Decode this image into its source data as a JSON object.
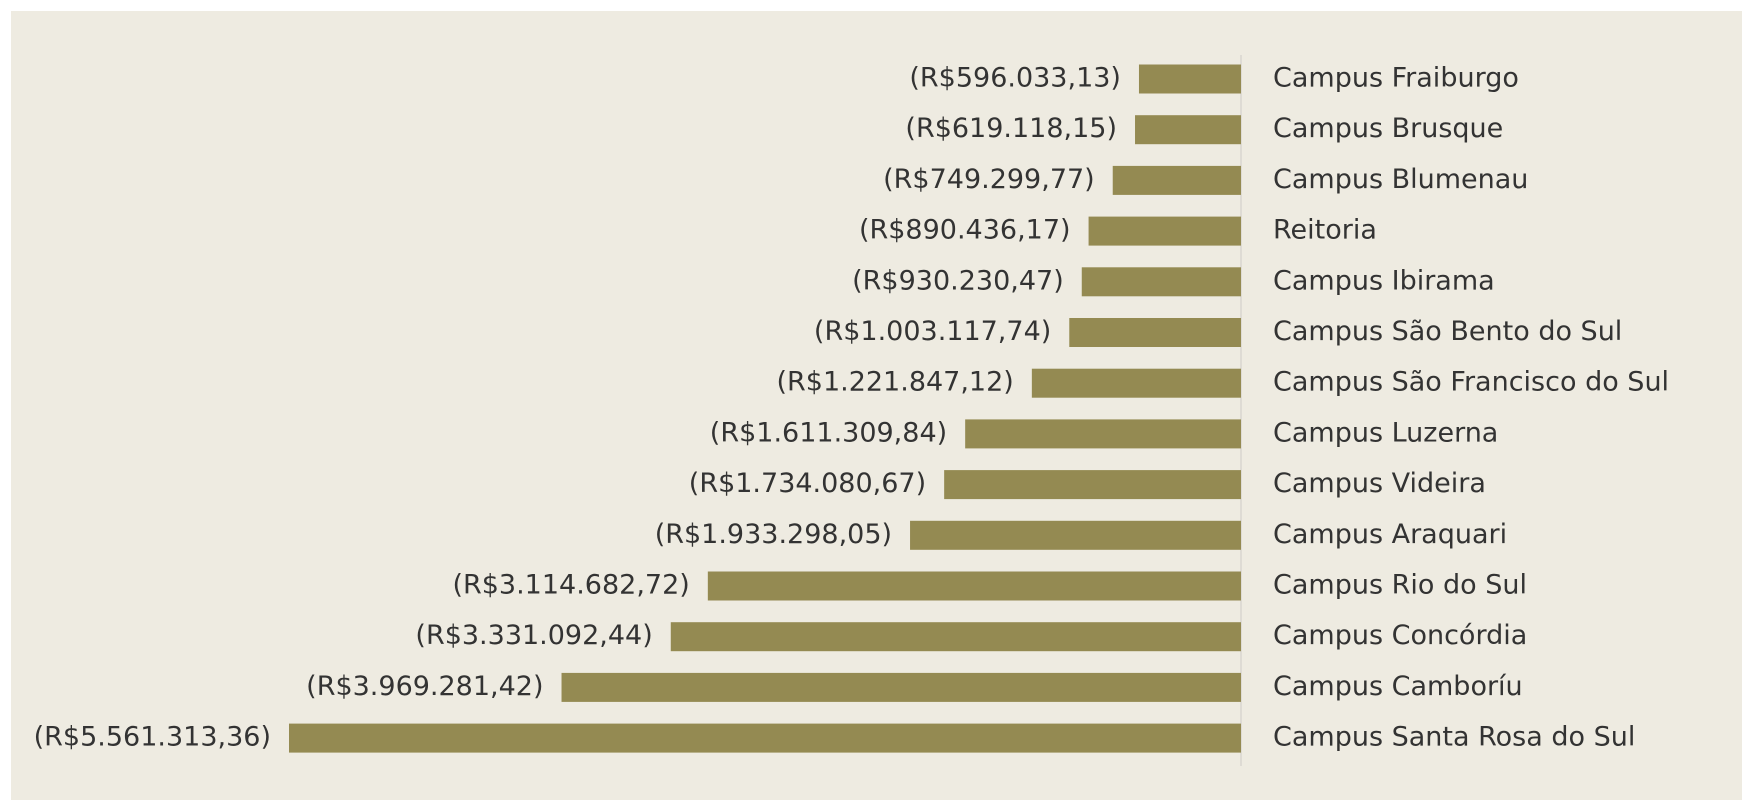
{
  "chart_data": {
    "type": "bar",
    "orientation": "horizontal",
    "color": "#948a52",
    "categories": [
      "Campus Fraiburgo",
      "Campus Brusque",
      "Campus Blumenau",
      "Reitoria",
      "Campus Ibirama",
      "Campus São Bento do Sul",
      "Campus São Francisco do Sul",
      "Campus Luzerna",
      "Campus Videira",
      "Campus Araquari",
      "Campus Rio do Sul",
      "Campus Concórdia",
      "Campus Camboríu",
      "Campus Santa Rosa do Sul"
    ],
    "values": [
      -596033.13,
      -619118.15,
      -749299.77,
      -890436.17,
      -930230.47,
      -1003117.74,
      -1221847.12,
      -1611309.84,
      -1734080.67,
      -1933298.05,
      -3114682.72,
      -3331092.44,
      -3969281.42,
      -5561313.36
    ],
    "value_labels": [
      "(R$596.033,13)",
      "(R$619.118,15)",
      "(R$749.299,77)",
      "(R$890.436,17)",
      "(R$930.230,47)",
      "(R$1.003.117,74)",
      "(R$1.221.847,12)",
      "(R$1.611.309,84)",
      "(R$1.734.080,67)",
      "(R$1.933.298,05)",
      "(R$3.114.682,72)",
      "(R$3.331.092,44)",
      "(R$3.969.281,42)",
      "(R$5.561.313,36)"
    ]
  }
}
